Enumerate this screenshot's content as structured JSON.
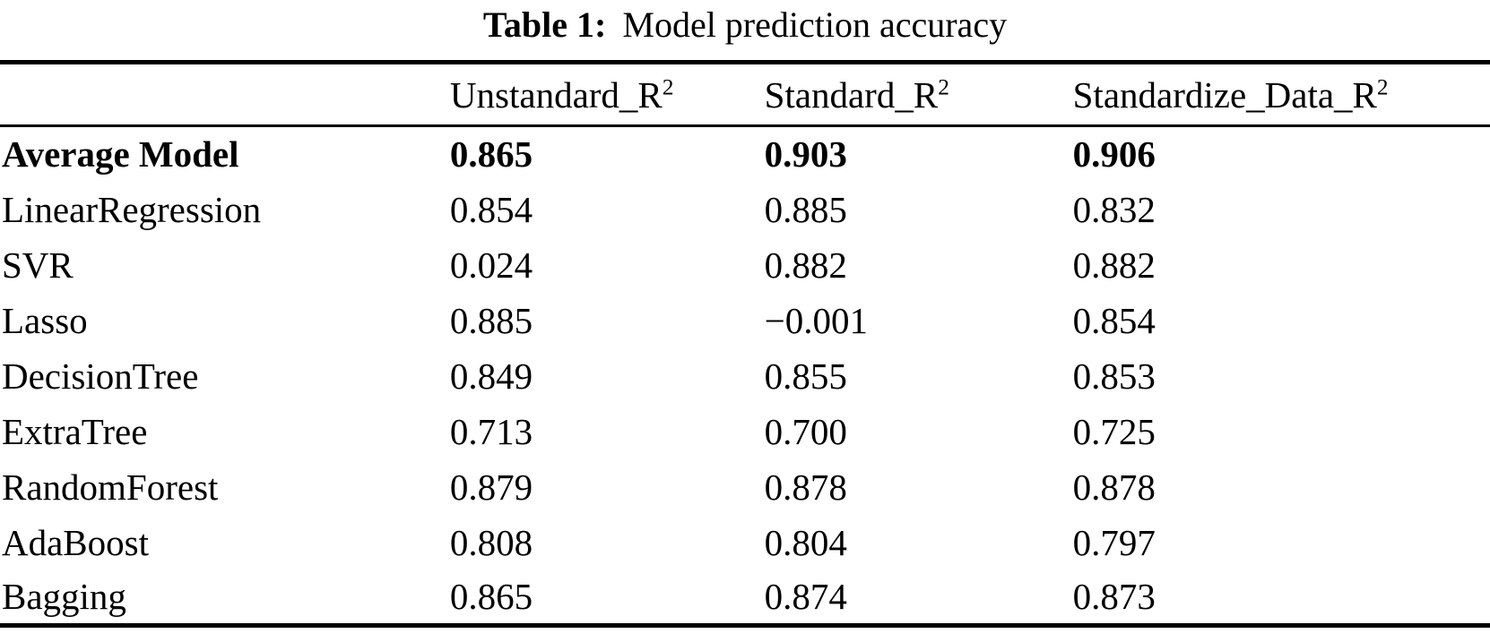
{
  "page": {
    "background_color": "#ffffff",
    "text_color": "#000000"
  },
  "caption": {
    "label": "Table 1:",
    "text": "Model prediction accuracy"
  },
  "table": {
    "columns": [
      {
        "base": "",
        "sup": ""
      },
      {
        "base": "Unstandard_R",
        "sup": "2"
      },
      {
        "base": "Standard_R",
        "sup": "2"
      },
      {
        "base": "Standardize_Data_R",
        "sup": "2"
      }
    ],
    "rows": [
      {
        "model": "Average Model",
        "values": [
          "0.865",
          "0.903",
          "0.906"
        ],
        "bold": true
      },
      {
        "model": "LinearRegression",
        "values": [
          "0.854",
          "0.885",
          "0.832"
        ],
        "bold": false
      },
      {
        "model": "SVR",
        "values": [
          "0.024",
          "0.882",
          "0.882"
        ],
        "bold": false
      },
      {
        "model": "Lasso",
        "values": [
          "0.885",
          "−0.001",
          "0.854"
        ],
        "bold": false
      },
      {
        "model": "DecisionTree",
        "values": [
          "0.849",
          "0.855",
          "0.853"
        ],
        "bold": false
      },
      {
        "model": "ExtraTree",
        "values": [
          "0.713",
          "0.700",
          "0.725"
        ],
        "bold": false
      },
      {
        "model": "RandomForest",
        "values": [
          "0.879",
          "0.878",
          "0.878"
        ],
        "bold": false
      },
      {
        "model": "AdaBoost",
        "values": [
          "0.808",
          "0.804",
          "0.797"
        ],
        "bold": false
      },
      {
        "model": "Bagging",
        "values": [
          "0.865",
          "0.874",
          "0.873"
        ],
        "bold": false
      }
    ]
  }
}
